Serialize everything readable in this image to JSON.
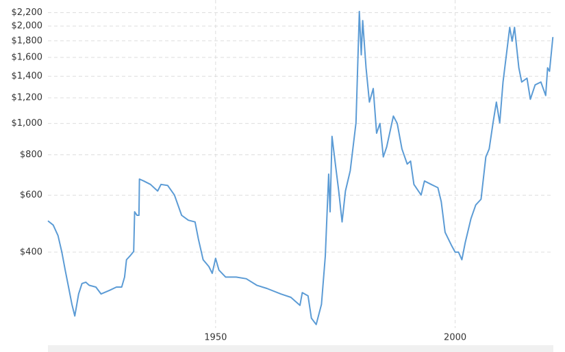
{
  "chart_data": {
    "type": "line",
    "log_y": true,
    "grid": true,
    "xlim": [
      1915,
      2020.5
    ],
    "ylim": [
      233,
      2350
    ],
    "xticks": [
      1950,
      2000
    ],
    "yticks": [
      {
        "value": 400,
        "label": "$400"
      },
      {
        "value": 600,
        "label": "$600"
      },
      {
        "value": 800,
        "label": "$800"
      },
      {
        "value": 1000,
        "label": "$1,000"
      },
      {
        "value": 1200,
        "label": "$1,200"
      },
      {
        "value": 1400,
        "label": "$1,400"
      },
      {
        "value": 1600,
        "label": "$1,600"
      },
      {
        "value": 1800,
        "label": "$1,800"
      },
      {
        "value": 2000,
        "label": "$2,000"
      },
      {
        "value": 2200,
        "label": "$2,200"
      }
    ],
    "series": [
      {
        "color": "#5b9bd5",
        "x": [
          1915,
          1916.1,
          1917.1,
          1917.9,
          1918.6,
          1919.3,
          1920,
          1920.6,
          1921.4,
          1922.1,
          1922.9,
          1923.6,
          1925,
          1926.1,
          1927.9,
          1929.3,
          1930.4,
          1931,
          1931.4,
          1932.1,
          1932.9,
          1933.1,
          1933.6,
          1934,
          1934.1,
          1935,
          1936.4,
          1937.9,
          1938.6,
          1940,
          1941.4,
          1942.9,
          1944.3,
          1945.7,
          1946.4,
          1947.4,
          1948.6,
          1949.3,
          1950,
          1950.7,
          1952.1,
          1954.3,
          1956.4,
          1958.6,
          1960.7,
          1963.6,
          1965.7,
          1967.6,
          1968.1,
          1969.3,
          1970,
          1971,
          1972.1,
          1972.9,
          1973.6,
          1973.9,
          1974.3,
          1975,
          1975.7,
          1976.4,
          1977.1,
          1978.1,
          1979.3,
          1980,
          1980.4,
          1980.7,
          1981.4,
          1982.1,
          1982.9,
          1983.6,
          1984.3,
          1985,
          1985.7,
          1987.1,
          1987.9,
          1988.9,
          1990,
          1990.7,
          1991.4,
          1992.9,
          1993.6,
          1995,
          1996.4,
          1997.1,
          1997.9,
          1999.3,
          2000,
          2000.7,
          2001.4,
          2002.1,
          2003.3,
          2004.3,
          2005.4,
          2006.4,
          2007.1,
          2007.9,
          2008.6,
          2009.3,
          2010,
          2010.7,
          2011.4,
          2011.9,
          2012.4,
          2013.3,
          2013.9,
          2015,
          2015.7,
          2016.7,
          2017.9,
          2018.9,
          2019.3,
          2019.7,
          2020.4
        ],
        "values": [
          500,
          485,
          450,
          400,
          352,
          312,
          276,
          254,
          297,
          320,
          323,
          316,
          312,
          297,
          305,
          312,
          312,
          335,
          379,
          389,
          402,
          533,
          520,
          520,
          673,
          664,
          648,
          618,
          648,
          643,
          601,
          520,
          502,
          496,
          439,
          379,
          361,
          344,
          383,
          352,
          335,
          335,
          331,
          316,
          309,
          297,
          290,
          274,
          300,
          293,
          250,
          239,
          276,
          389,
          697,
          533,
          912,
          749,
          618,
          496,
          618,
          714,
          1004,
          2220,
          1630,
          2080,
          1486,
          1164,
          1282,
          933,
          1000,
          788,
          846,
          1054,
          1000,
          834,
          749,
          765,
          648,
          601,
          664,
          648,
          633,
          573,
          461,
          418,
          400,
          400,
          379,
          428,
          508,
          560,
          583,
          788,
          834,
          1004,
          1164,
          1004,
          1343,
          1630,
          1982,
          1796,
          1982,
          1486,
          1343,
          1380,
          1188,
          1316,
          1343,
          1220,
          1486,
          1450,
          1850
        ]
      }
    ]
  }
}
